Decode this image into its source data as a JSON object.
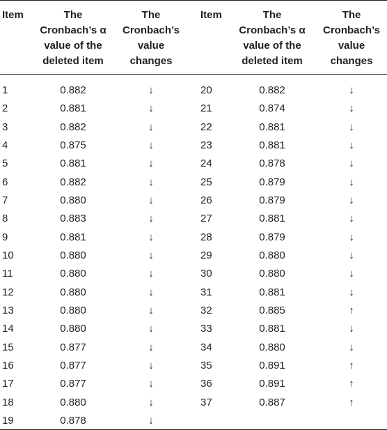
{
  "table": {
    "header": [
      [
        "Item"
      ],
      [
        "The",
        "Cronbach’s α",
        "value of the",
        "deleted item"
      ],
      [
        "The",
        "Cronbach’s",
        "value",
        "changes"
      ],
      [
        "Item"
      ],
      [
        "The",
        "Cronbach’s α",
        "value of the",
        "deleted item"
      ],
      [
        "The",
        "Cronbach’s",
        "value",
        "changes"
      ]
    ],
    "rows": [
      [
        "1",
        "0.882",
        "↓",
        "20",
        "0.882",
        "↓"
      ],
      [
        "2",
        "0.881",
        "↓",
        "21",
        "0.874",
        "↓"
      ],
      [
        "3",
        "0.882",
        "↓",
        "22",
        "0.881",
        "↓"
      ],
      [
        "4",
        "0.875",
        "↓",
        "23",
        "0.881",
        "↓"
      ],
      [
        "5",
        "0.881",
        "↓",
        "24",
        "0.878",
        "↓"
      ],
      [
        "6",
        "0.882",
        "↓",
        "25",
        "0.879",
        "↓"
      ],
      [
        "7",
        "0.880",
        "↓",
        "26",
        "0.879",
        "↓"
      ],
      [
        "8",
        "0.883",
        "↓",
        "27",
        "0.881",
        "↓"
      ],
      [
        "9",
        "0.881",
        "↓",
        "28",
        "0.879",
        "↓"
      ],
      [
        "10",
        "0.880",
        "↓",
        "29",
        "0.880",
        "↓"
      ],
      [
        "11",
        "0.880",
        "↓",
        "30",
        "0.880",
        "↓"
      ],
      [
        "12",
        "0.880",
        "↓",
        "31",
        "0.881",
        "↓"
      ],
      [
        "13",
        "0.880",
        "↓",
        "32",
        "0.885",
        "↑"
      ],
      [
        "14",
        "0.880",
        "↓",
        "33",
        "0.881",
        "↓"
      ],
      [
        "15",
        "0.877",
        "↓",
        "34",
        "0.880",
        "↓"
      ],
      [
        "16",
        "0.877",
        "↓",
        "35",
        "0.891",
        "↑"
      ],
      [
        "17",
        "0.877",
        "↓",
        "36",
        "0.891",
        "↑"
      ],
      [
        "18",
        "0.880",
        "↓",
        "37",
        "0.887",
        "↑"
      ],
      [
        "19",
        "0.878",
        "↓"
      ]
    ]
  }
}
